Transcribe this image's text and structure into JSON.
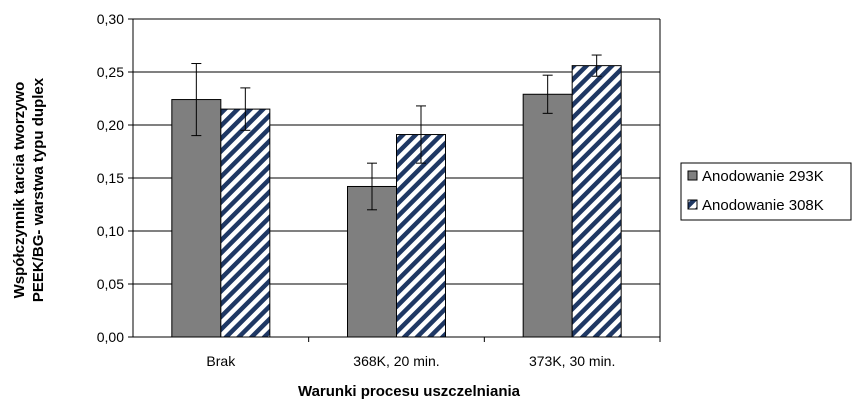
{
  "chart_data": {
    "type": "bar",
    "categories": [
      "Brak",
      "368K, 20 min.",
      "373K, 30 min."
    ],
    "series": [
      {
        "name": "Anodowanie 293K",
        "values": [
          0.224,
          0.142,
          0.229
        ],
        "errors": [
          0.034,
          0.022,
          0.018
        ],
        "color": "#7f7f7f",
        "pattern": "solid"
      },
      {
        "name": "Anodowanie 308K",
        "values": [
          0.215,
          0.191,
          0.256
        ],
        "errors": [
          0.02,
          0.027,
          0.01
        ],
        "color": "#1f3864",
        "pattern": "diagonal-stripes"
      }
    ],
    "title": "",
    "xlabel": "Warunki procesu uszczelniania",
    "ylabel": "Współczynnik tarcia tworzywo PEEK/BG- warstwa typu duplex",
    "ylabel_lines": [
      "Współczynnik tarcia tworzywo",
      "PEEK/BG- warstwa typu duplex"
    ],
    "ylim": [
      0,
      0.3
    ],
    "yticks": [
      "0,00",
      "0,05",
      "0,10",
      "0,15",
      "0,20",
      "0,25",
      "0,30"
    ],
    "grid": true,
    "legend_position": "right"
  }
}
